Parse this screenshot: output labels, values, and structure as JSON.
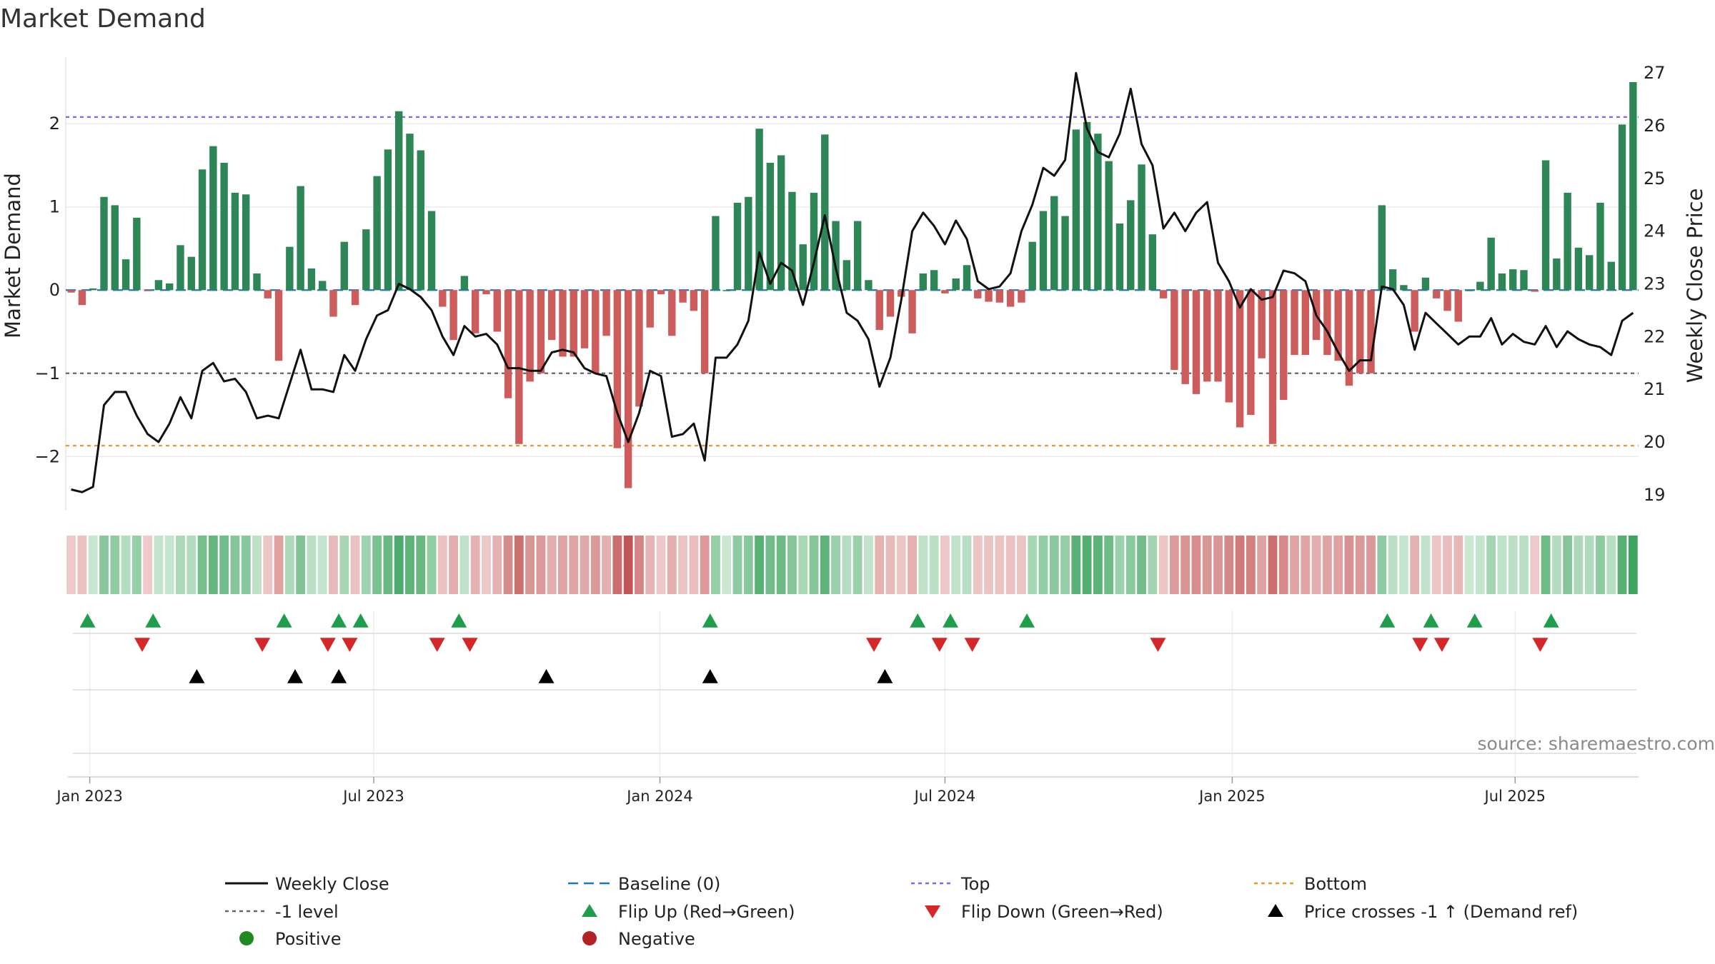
{
  "chart_data": {
    "type": "bar",
    "title": "Market Demand",
    "ylabel": "Market Demand",
    "y2label": "Weekly Close Price",
    "ylim": [
      -2.65,
      2.8
    ],
    "y2lim": [
      18.7,
      27.3
    ],
    "yticks": [
      {
        "value": 2,
        "label": "2"
      },
      {
        "value": 1,
        "label": "1"
      },
      {
        "value": 0,
        "label": "0"
      },
      {
        "value": -1,
        "label": "−1"
      },
      {
        "value": -2,
        "label": "−2"
      }
    ],
    "y2ticks": [
      {
        "value": 19,
        "label": "19"
      },
      {
        "value": 20,
        "label": "20"
      },
      {
        "value": 21,
        "label": "21"
      },
      {
        "value": 22,
        "label": "22"
      },
      {
        "value": 23,
        "label": "23"
      },
      {
        "value": 24,
        "label": "24"
      },
      {
        "value": 25,
        "label": "25"
      },
      {
        "value": 26,
        "label": "26"
      },
      {
        "value": 27,
        "label": "27"
      }
    ],
    "xticks": [
      {
        "week": 2.2,
        "label": "Jan 2023"
      },
      {
        "week": 28.2,
        "label": "Jul 2023"
      },
      {
        "week": 54.4,
        "label": "Jan 2024"
      },
      {
        "week": 80.5,
        "label": "Jul 2024"
      },
      {
        "week": 106.8,
        "label": "Jan 2025"
      },
      {
        "week": 132.7,
        "label": "Jul 2025"
      }
    ],
    "reference_lines": {
      "top": 2.08,
      "bottom": -1.87,
      "minus_one": -1,
      "baseline": 0
    },
    "demand": [
      -0.03,
      -0.18,
      0.02,
      1.12,
      1.02,
      0.37,
      0.87,
      -0.01,
      0.12,
      0.08,
      0.54,
      0.4,
      1.45,
      1.73,
      1.53,
      1.17,
      1.15,
      0.2,
      -0.1,
      -0.85,
      0.52,
      1.25,
      0.26,
      0.11,
      -0.32,
      0.58,
      -0.18,
      0.73,
      1.37,
      1.69,
      2.15,
      1.88,
      1.68,
      0.95,
      -0.2,
      -0.6,
      0.17,
      -0.52,
      -0.05,
      -0.5,
      -1.3,
      -1.85,
      -1.1,
      -1.0,
      -0.6,
      -0.8,
      -0.8,
      -0.7,
      -1.0,
      -0.55,
      -1.9,
      -2.38,
      -1.4,
      -0.45,
      -0.05,
      -0.55,
      -0.15,
      -0.25,
      -1.0,
      0.89,
      0.0,
      1.05,
      1.12,
      1.94,
      1.53,
      1.62,
      1.18,
      0.55,
      1.17,
      1.87,
      0.83,
      0.36,
      0.83,
      0.12,
      -0.48,
      -0.32,
      -0.08,
      -0.52,
      0.2,
      0.24,
      -0.04,
      0.14,
      0.3,
      -0.1,
      -0.14,
      -0.15,
      -0.2,
      -0.15,
      0.58,
      0.95,
      1.13,
      0.89,
      1.93,
      2.02,
      1.88,
      1.55,
      0.8,
      1.08,
      1.51,
      0.67,
      -0.1,
      -0.96,
      -1.13,
      -1.25,
      -1.1,
      -1.1,
      -1.35,
      -1.65,
      -1.5,
      -0.82,
      -1.85,
      -1.32,
      -0.78,
      -0.78,
      -0.6,
      -0.78,
      -0.85,
      -1.15,
      -1.0,
      -1.0,
      1.02,
      0.25,
      0.06,
      -0.5,
      0.15,
      -0.1,
      -0.25,
      -0.38,
      0.0,
      0.1,
      0.63,
      0.2,
      0.25,
      0.24,
      -0.02,
      1.56,
      0.38,
      1.17,
      0.51,
      0.42,
      1.05,
      0.34,
      1.99,
      2.5
    ],
    "weekly_close": [
      19.1,
      19.05,
      19.15,
      20.7,
      20.95,
      20.95,
      20.5,
      20.15,
      20.0,
      20.35,
      20.85,
      20.45,
      21.35,
      21.5,
      21.15,
      21.2,
      20.95,
      20.45,
      20.5,
      20.45,
      21.1,
      21.75,
      21.0,
      21.0,
      20.95,
      21.65,
      21.35,
      21.95,
      22.4,
      22.5,
      23.0,
      22.9,
      22.75,
      22.5,
      22.0,
      21.65,
      22.2,
      22.0,
      22.05,
      21.85,
      21.4,
      21.4,
      21.35,
      21.35,
      21.7,
      21.75,
      21.7,
      21.4,
      21.3,
      21.25,
      20.55,
      20.0,
      20.55,
      21.35,
      21.25,
      20.1,
      20.15,
      20.35,
      19.65,
      21.6,
      21.6,
      21.85,
      22.3,
      23.6,
      23.0,
      23.4,
      23.25,
      22.6,
      23.4,
      24.3,
      23.3,
      22.45,
      22.3,
      21.95,
      21.05,
      21.6,
      22.7,
      24.0,
      24.35,
      24.1,
      23.75,
      24.2,
      23.85,
      23.05,
      22.9,
      22.95,
      23.2,
      24.0,
      24.5,
      25.2,
      25.05,
      25.35,
      27.0,
      25.95,
      25.5,
      25.4,
      25.85,
      26.7,
      25.65,
      25.25,
      24.05,
      24.35,
      24.0,
      24.35,
      24.55,
      23.4,
      23.05,
      22.55,
      22.9,
      22.7,
      22.75,
      23.25,
      23.2,
      23.05,
      22.4,
      22.1,
      21.7,
      21.35,
      21.55,
      21.55,
      22.95,
      22.9,
      22.6,
      21.75,
      22.45,
      22.25,
      22.05,
      21.85,
      22.0,
      22.0,
      22.35,
      21.85,
      22.05,
      21.9,
      21.85,
      22.2,
      21.8,
      22.1,
      21.95,
      21.85,
      21.8,
      21.65,
      22.3,
      22.45
    ],
    "strip_intensity_note": "colour strip mirrors demand sign and magnitude per week",
    "markers": {
      "flip_up_weeks": [
        2,
        8,
        20,
        25,
        27,
        36,
        59,
        78,
        81,
        88,
        121,
        125,
        129,
        136
      ],
      "flip_down_weeks": [
        7,
        18,
        24,
        26,
        34,
        37,
        74,
        80,
        83,
        100,
        124,
        126,
        135
      ],
      "price_cross_weeks": [
        12,
        21,
        25,
        44,
        59,
        75
      ]
    },
    "legend": [
      {
        "key": "weekly_close",
        "label": "Weekly Close"
      },
      {
        "key": "baseline",
        "label": "Baseline (0)"
      },
      {
        "key": "top",
        "label": "Top"
      },
      {
        "key": "bottom",
        "label": "Bottom"
      },
      {
        "key": "minus_one",
        "label": "-1 level"
      },
      {
        "key": "flip_up",
        "label": "Flip Up (Red→Green)"
      },
      {
        "key": "flip_down",
        "label": "Flip Down (Green→Red)"
      },
      {
        "key": "price_cross",
        "label": "Price crosses -1 ↑ (Demand ref)"
      },
      {
        "key": "positive",
        "label": "Positive"
      },
      {
        "key": "negative",
        "label": "Negative"
      }
    ],
    "source": "source: sharemaestro.com"
  },
  "colors": {
    "positive_bar": "#2e8556",
    "negative_bar": "#cd5c5c",
    "price_line": "#111111",
    "baseline": "#1f77b4",
    "top": "#7b68ee",
    "bottom": "#e39c2a",
    "minus_one": "#666666",
    "flip_up": "#1e9e4a",
    "flip_down": "#d62728",
    "price_cross": "#000000",
    "positive_dot": "#1f8a1f",
    "negative_dot": "#b22222"
  }
}
